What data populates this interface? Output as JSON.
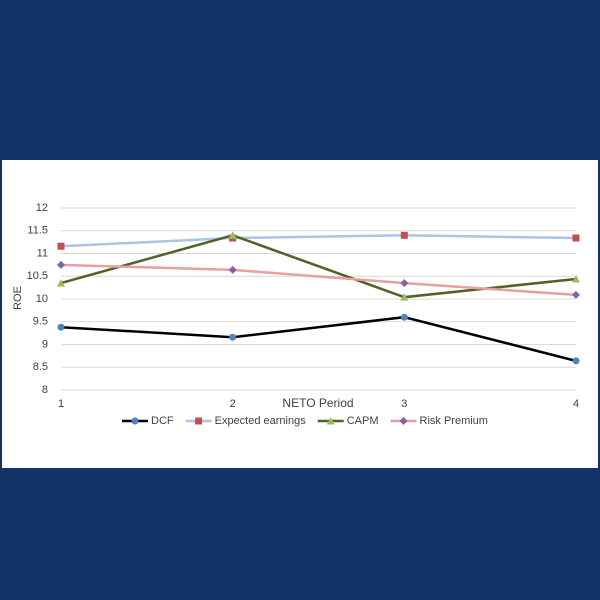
{
  "chart_data": {
    "type": "line",
    "x_label": "NETO Period",
    "y_label": "ROE",
    "x": [
      1,
      2,
      3,
      4
    ],
    "xlim": [
      1,
      4
    ],
    "xticks": [
      1,
      2,
      3,
      4
    ],
    "ylim": [
      8,
      12
    ],
    "yticks": [
      8,
      8.5,
      9,
      9.5,
      10,
      10.5,
      11,
      11.5,
      12
    ],
    "grid": true,
    "legend": "bottom",
    "series": [
      {
        "name": "DCF",
        "color": "#000000",
        "marker_color": "#4f81bd",
        "marker": "circle",
        "values": [
          9.38,
          9.16,
          9.6,
          8.64
        ]
      },
      {
        "name": "Expected earnings",
        "color": "#a9c4e4",
        "marker_color": "#c0504d",
        "marker": "square",
        "values": [
          11.16,
          11.34,
          11.4,
          11.34
        ]
      },
      {
        "name": "CAPM",
        "color": "#4f6228",
        "marker_color": "#9bbb59",
        "marker": "triangle",
        "values": [
          10.35,
          11.4,
          10.04,
          10.44
        ]
      },
      {
        "name": "Risk Premium",
        "color": "#e6a0a0",
        "marker_color": "#8064a2",
        "marker": "diamond",
        "values": [
          10.75,
          10.64,
          10.35,
          10.09
        ]
      }
    ]
  }
}
